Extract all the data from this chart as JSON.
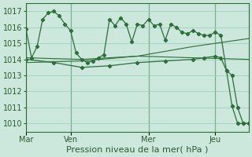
{
  "background_color": "#cce8dc",
  "plot_bg_color": "#cce8dc",
  "grid_color": "#99ccb3",
  "line_color": "#2d6e3a",
  "ylim": [
    1009.5,
    1017.5
  ],
  "yticks": [
    1010,
    1011,
    1012,
    1013,
    1014,
    1015,
    1016,
    1017
  ],
  "xlabel": "Pression niveau de la mer( hPa )",
  "xlabel_fontsize": 8,
  "tick_fontsize": 7,
  "day_labels": [
    "Mar",
    "Ven",
    "Mer",
    "Jeu"
  ],
  "day_positions": [
    0,
    8,
    22,
    34
  ],
  "vline_positions": [
    0,
    8,
    22,
    34
  ],
  "xlim": [
    0,
    40
  ],
  "series1_x": [
    0,
    1,
    2,
    3,
    4,
    5,
    6,
    7,
    8,
    9,
    10,
    11,
    12,
    13,
    14,
    15,
    16,
    17,
    18,
    19,
    20,
    21,
    22,
    23,
    24,
    25,
    26,
    27,
    28,
    29,
    30,
    31,
    32,
    33,
    34,
    35,
    36,
    37,
    38,
    39,
    40
  ],
  "series1_y": [
    1015.9,
    1014.1,
    1014.8,
    1016.5,
    1016.9,
    1017.0,
    1016.7,
    1016.2,
    1015.8,
    1014.4,
    1014.0,
    1013.8,
    1013.9,
    1014.1,
    1014.3,
    1016.5,
    1016.1,
    1016.6,
    1016.2,
    1015.1,
    1016.2,
    1016.1,
    1016.5,
    1016.1,
    1016.2,
    1015.2,
    1016.2,
    1016.0,
    1015.7,
    1015.6,
    1015.8,
    1015.6,
    1015.5,
    1015.5,
    1015.7,
    1015.5,
    1013.3,
    1013.0,
    1011.0,
    1010.0,
    1010.0
  ],
  "series2_x": [
    0,
    10,
    20,
    30,
    40
  ],
  "series2_y": [
    1014.1,
    1014.0,
    1014.2,
    1014.1,
    1014.0
  ],
  "series3_x": [
    0,
    10,
    20,
    30,
    40
  ],
  "series3_y": [
    1013.8,
    1013.9,
    1014.2,
    1014.8,
    1015.3
  ],
  "series4_x": [
    0,
    5,
    10,
    15,
    20,
    25,
    30,
    32,
    34,
    35,
    36,
    37,
    38,
    39,
    40
  ],
  "series4_y": [
    1014.0,
    1013.8,
    1013.5,
    1013.6,
    1013.8,
    1013.9,
    1014.0,
    1014.1,
    1014.2,
    1014.1,
    1013.3,
    1011.1,
    1010.0,
    1010.0,
    1010.0
  ]
}
